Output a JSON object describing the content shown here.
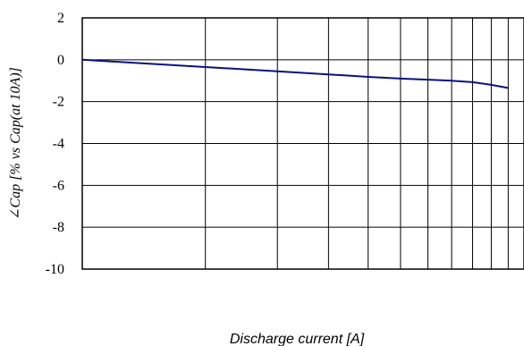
{
  "chart_data": {
    "type": "line",
    "title": "",
    "xlabel": "Discharge current [A]",
    "ylabel": "∠Cap [% vs Cap(at 10A)]",
    "ylim": [
      -10,
      2
    ],
    "x_scale": "log",
    "y_ticks": [
      "2",
      "0",
      "-2",
      "-4",
      "-6",
      "-8",
      "-10"
    ],
    "grid": true,
    "series": [
      {
        "color": "#0a1280",
        "x": [
          10,
          20,
          30,
          40,
          50,
          60,
          70,
          80,
          90,
          100,
          110
        ],
        "y": [
          0.0,
          -0.35,
          -0.55,
          -0.7,
          -0.82,
          -0.9,
          -0.95,
          -1.0,
          -1.07,
          -1.2,
          -1.35
        ]
      }
    ]
  }
}
